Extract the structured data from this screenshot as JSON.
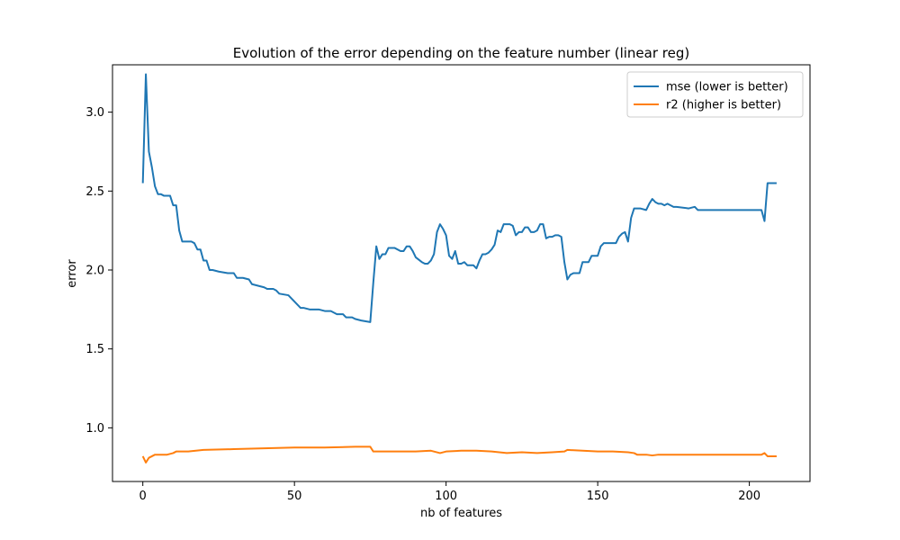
{
  "chart_data": {
    "type": "line",
    "title": "Evolution of the error depending on the feature number (linear reg)",
    "xlabel": "nb of features",
    "ylabel": "error",
    "xlim": [
      -10,
      220
    ],
    "ylim": [
      0.66,
      3.3
    ],
    "x_ticks": [
      0,
      50,
      100,
      150,
      200
    ],
    "x_tick_labels": [
      "0",
      "50",
      "100",
      "150",
      "200"
    ],
    "y_ticks": [
      1.0,
      1.5,
      2.0,
      2.5,
      3.0
    ],
    "y_tick_labels": [
      "1.0",
      "1.5",
      "2.0",
      "2.5",
      "3.0"
    ],
    "grid": false,
    "legend": "top-right",
    "series": [
      {
        "name": "mse (lower is better)",
        "color": "#1f77b4",
        "points": [
          [
            0,
            2.55
          ],
          [
            1,
            3.24
          ],
          [
            2,
            2.75
          ],
          [
            3,
            2.65
          ],
          [
            4,
            2.53
          ],
          [
            5,
            2.48
          ],
          [
            6,
            2.48
          ],
          [
            7,
            2.47
          ],
          [
            8,
            2.47
          ],
          [
            9,
            2.47
          ],
          [
            10,
            2.41
          ],
          [
            11,
            2.41
          ],
          [
            12,
            2.25
          ],
          [
            13,
            2.18
          ],
          [
            14,
            2.18
          ],
          [
            15,
            2.18
          ],
          [
            16,
            2.18
          ],
          [
            17,
            2.17
          ],
          [
            18,
            2.13
          ],
          [
            19,
            2.13
          ],
          [
            20,
            2.06
          ],
          [
            21,
            2.06
          ],
          [
            22,
            2.0
          ],
          [
            23,
            2.0
          ],
          [
            25,
            1.99
          ],
          [
            28,
            1.98
          ],
          [
            30,
            1.98
          ],
          [
            31,
            1.95
          ],
          [
            33,
            1.95
          ],
          [
            35,
            1.94
          ],
          [
            36,
            1.91
          ],
          [
            38,
            1.9
          ],
          [
            40,
            1.89
          ],
          [
            41,
            1.88
          ],
          [
            43,
            1.88
          ],
          [
            44,
            1.87
          ],
          [
            45,
            1.85
          ],
          [
            48,
            1.84
          ],
          [
            49,
            1.82
          ],
          [
            50,
            1.8
          ],
          [
            51,
            1.78
          ],
          [
            52,
            1.76
          ],
          [
            53,
            1.76
          ],
          [
            55,
            1.75
          ],
          [
            58,
            1.75
          ],
          [
            60,
            1.74
          ],
          [
            62,
            1.74
          ],
          [
            63,
            1.73
          ],
          [
            64,
            1.72
          ],
          [
            66,
            1.72
          ],
          [
            67,
            1.7
          ],
          [
            69,
            1.7
          ],
          [
            70,
            1.69
          ],
          [
            72,
            1.68
          ],
          [
            75,
            1.67
          ],
          [
            76,
            1.92
          ],
          [
            77,
            2.15
          ],
          [
            78,
            2.07
          ],
          [
            79,
            2.1
          ],
          [
            80,
            2.1
          ],
          [
            81,
            2.14
          ],
          [
            83,
            2.14
          ],
          [
            85,
            2.12
          ],
          [
            86,
            2.12
          ],
          [
            87,
            2.15
          ],
          [
            88,
            2.15
          ],
          [
            89,
            2.12
          ],
          [
            90,
            2.08
          ],
          [
            92,
            2.05
          ],
          [
            93,
            2.04
          ],
          [
            94,
            2.04
          ],
          [
            95,
            2.06
          ],
          [
            96,
            2.1
          ],
          [
            97,
            2.24
          ],
          [
            98,
            2.29
          ],
          [
            99,
            2.26
          ],
          [
            100,
            2.22
          ],
          [
            101,
            2.09
          ],
          [
            102,
            2.07
          ],
          [
            103,
            2.12
          ],
          [
            104,
            2.04
          ],
          [
            105,
            2.04
          ],
          [
            106,
            2.05
          ],
          [
            107,
            2.03
          ],
          [
            108,
            2.03
          ],
          [
            109,
            2.03
          ],
          [
            110,
            2.01
          ],
          [
            111,
            2.06
          ],
          [
            112,
            2.1
          ],
          [
            113,
            2.1
          ],
          [
            114,
            2.11
          ],
          [
            115,
            2.13
          ],
          [
            116,
            2.16
          ],
          [
            117,
            2.25
          ],
          [
            118,
            2.24
          ],
          [
            119,
            2.29
          ],
          [
            121,
            2.29
          ],
          [
            122,
            2.28
          ],
          [
            123,
            2.22
          ],
          [
            124,
            2.24
          ],
          [
            125,
            2.24
          ],
          [
            126,
            2.27
          ],
          [
            127,
            2.27
          ],
          [
            128,
            2.24
          ],
          [
            129,
            2.24
          ],
          [
            130,
            2.25
          ],
          [
            131,
            2.29
          ],
          [
            132,
            2.29
          ],
          [
            133,
            2.2
          ],
          [
            134,
            2.21
          ],
          [
            135,
            2.21
          ],
          [
            136,
            2.22
          ],
          [
            137,
            2.22
          ],
          [
            138,
            2.21
          ],
          [
            139,
            2.05
          ],
          [
            140,
            1.94
          ],
          [
            141,
            1.97
          ],
          [
            142,
            1.98
          ],
          [
            143,
            1.98
          ],
          [
            144,
            1.98
          ],
          [
            145,
            2.05
          ],
          [
            147,
            2.05
          ],
          [
            148,
            2.09
          ],
          [
            150,
            2.09
          ],
          [
            151,
            2.15
          ],
          [
            152,
            2.17
          ],
          [
            153,
            2.17
          ],
          [
            155,
            2.17
          ],
          [
            156,
            2.17
          ],
          [
            157,
            2.21
          ],
          [
            158,
            2.23
          ],
          [
            159,
            2.24
          ],
          [
            160,
            2.18
          ],
          [
            161,
            2.33
          ],
          [
            162,
            2.39
          ],
          [
            164,
            2.39
          ],
          [
            166,
            2.38
          ],
          [
            167,
            2.42
          ],
          [
            168,
            2.45
          ],
          [
            169,
            2.43
          ],
          [
            170,
            2.42
          ],
          [
            171,
            2.42
          ],
          [
            172,
            2.41
          ],
          [
            173,
            2.42
          ],
          [
            174,
            2.41
          ],
          [
            175,
            2.4
          ],
          [
            176,
            2.4
          ],
          [
            180,
            2.39
          ],
          [
            182,
            2.4
          ],
          [
            183,
            2.38
          ],
          [
            190,
            2.38
          ],
          [
            200,
            2.38
          ],
          [
            204,
            2.38
          ],
          [
            205,
            2.31
          ],
          [
            206,
            2.55
          ],
          [
            208,
            2.55
          ],
          [
            209,
            2.55
          ]
        ]
      },
      {
        "name": "r2 (higher is better)",
        "color": "#ff7f0e",
        "points": [
          [
            0,
            0.82
          ],
          [
            1,
            0.78
          ],
          [
            2,
            0.81
          ],
          [
            3,
            0.82
          ],
          [
            4,
            0.83
          ],
          [
            5,
            0.83
          ],
          [
            8,
            0.83
          ],
          [
            9,
            0.835
          ],
          [
            10,
            0.84
          ],
          [
            11,
            0.85
          ],
          [
            15,
            0.85
          ],
          [
            20,
            0.86
          ],
          [
            30,
            0.865
          ],
          [
            40,
            0.87
          ],
          [
            50,
            0.875
          ],
          [
            60,
            0.875
          ],
          [
            70,
            0.88
          ],
          [
            75,
            0.88
          ],
          [
            76,
            0.85
          ],
          [
            80,
            0.85
          ],
          [
            90,
            0.85
          ],
          [
            95,
            0.855
          ],
          [
            98,
            0.84
          ],
          [
            100,
            0.85
          ],
          [
            105,
            0.855
          ],
          [
            110,
            0.855
          ],
          [
            115,
            0.85
          ],
          [
            120,
            0.84
          ],
          [
            125,
            0.845
          ],
          [
            130,
            0.84
          ],
          [
            135,
            0.845
          ],
          [
            139,
            0.85
          ],
          [
            140,
            0.86
          ],
          [
            145,
            0.855
          ],
          [
            150,
            0.85
          ],
          [
            155,
            0.85
          ],
          [
            160,
            0.845
          ],
          [
            162,
            0.84
          ],
          [
            163,
            0.83
          ],
          [
            166,
            0.83
          ],
          [
            168,
            0.825
          ],
          [
            170,
            0.83
          ],
          [
            180,
            0.83
          ],
          [
            190,
            0.83
          ],
          [
            204,
            0.83
          ],
          [
            205,
            0.84
          ],
          [
            206,
            0.82
          ],
          [
            209,
            0.82
          ]
        ]
      }
    ]
  }
}
